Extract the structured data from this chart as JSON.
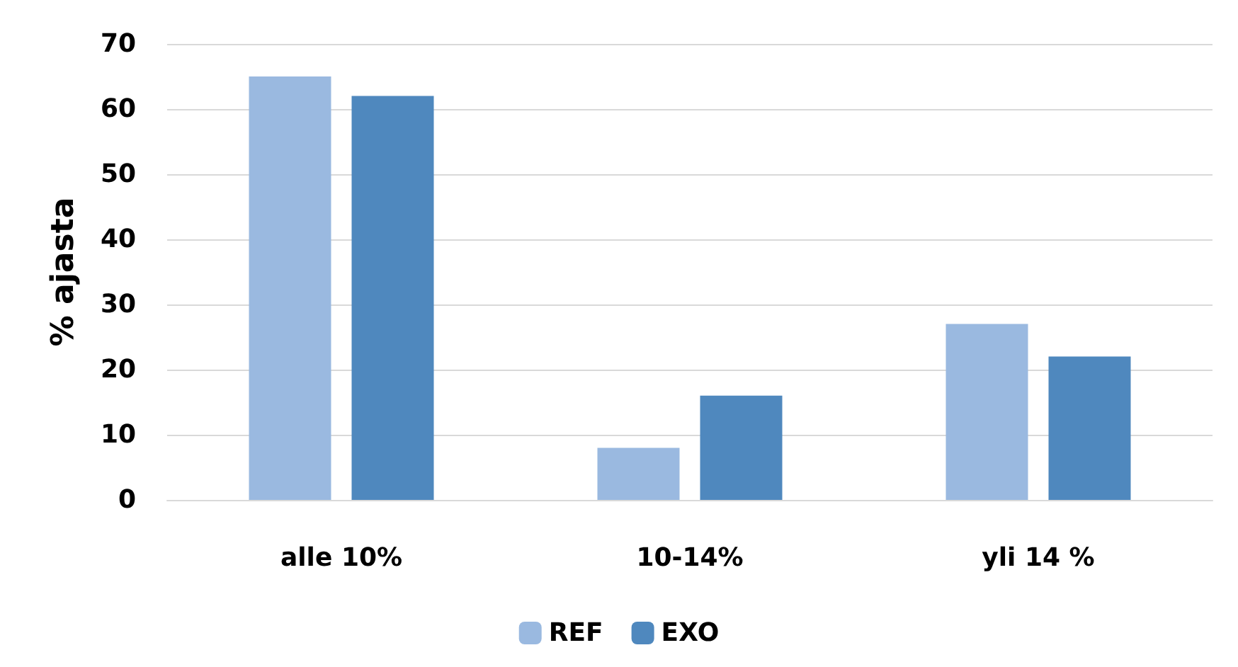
{
  "chart_data": {
    "type": "bar",
    "ylabel": "% ajasta",
    "categories": [
      "alle 10%",
      "10-14%",
      "yli 14 %"
    ],
    "series": [
      {
        "name": "REF",
        "color": "#9ab9e0",
        "values": [
          65,
          8,
          27
        ]
      },
      {
        "name": "EXO",
        "color": "#4f88be",
        "values": [
          62,
          16,
          22
        ]
      }
    ],
    "ylim": [
      0,
      70
    ],
    "yticks": [
      0,
      10,
      20,
      30,
      40,
      50,
      60,
      70
    ],
    "grid": "y",
    "legend": "bottom"
  }
}
